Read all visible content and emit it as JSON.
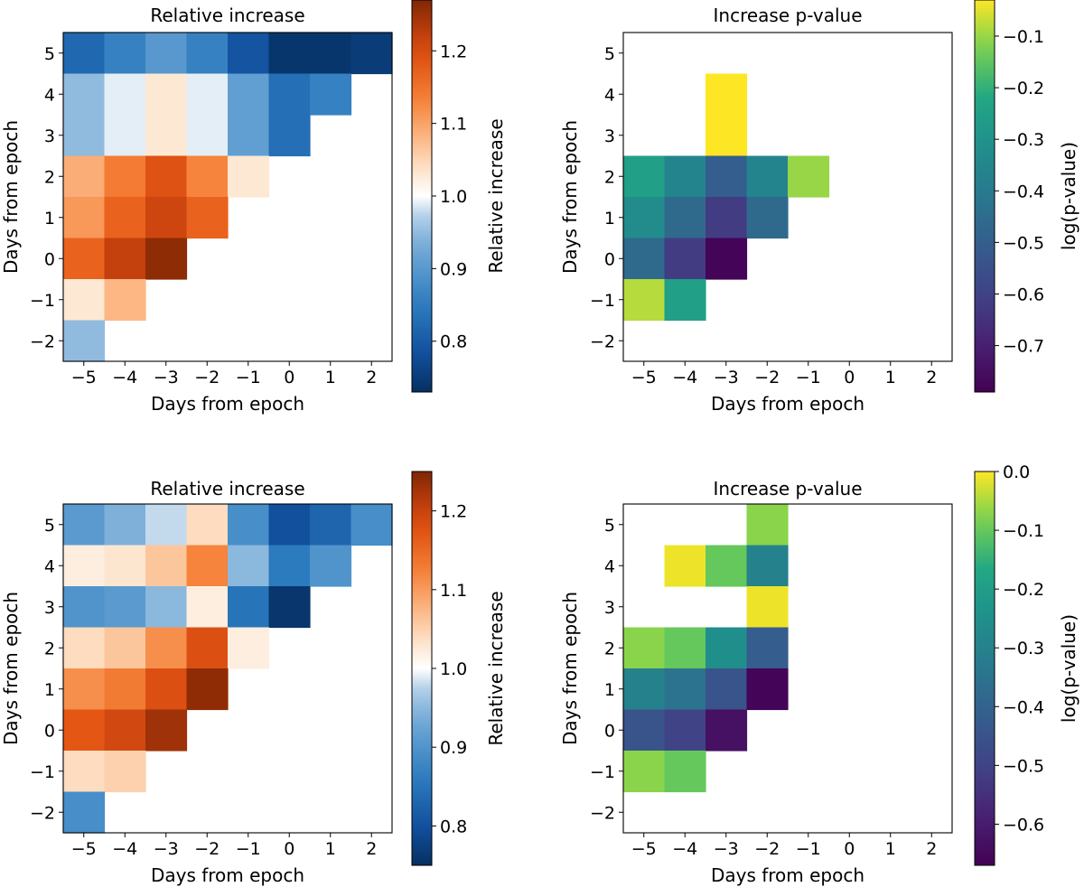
{
  "chart_data": [
    {
      "type": "heatmap",
      "title": "Relative increase",
      "xlabel": "Days from epoch",
      "ylabel": "Days from epoch",
      "x": [
        -5,
        -4,
        -3,
        -2,
        -1,
        0,
        1,
        2
      ],
      "y": [
        5,
        4,
        3,
        2,
        1,
        0,
        -1,
        -2
      ],
      "xtick_labels": [
        "−5",
        "−4",
        "−3",
        "−2",
        "−1",
        "0",
        "1",
        "2"
      ],
      "ytick_labels": [
        "5",
        "4",
        "3",
        "2",
        "1",
        "0",
        "−1",
        "−2"
      ],
      "values": [
        [
          0.82,
          0.86,
          0.9,
          0.86,
          0.79,
          0.74,
          0.74,
          0.75
        ],
        [
          0.95,
          0.99,
          1.03,
          0.99,
          0.91,
          0.83,
          0.86,
          null
        ],
        [
          0.95,
          0.99,
          1.03,
          0.99,
          0.91,
          0.83,
          null,
          null
        ],
        [
          1.09,
          1.14,
          1.19,
          1.13,
          1.03,
          null,
          null,
          null
        ],
        [
          1.11,
          1.17,
          1.21,
          1.17,
          null,
          null,
          null,
          null
        ],
        [
          1.17,
          1.22,
          1.26,
          null,
          null,
          null,
          null,
          null
        ],
        [
          1.03,
          1.08,
          null,
          null,
          null,
          null,
          null,
          null
        ],
        [
          0.95,
          null,
          null,
          null,
          null,
          null,
          null,
          null
        ]
      ],
      "colormap": "diverging-blue-white-orange",
      "clim": [
        0.73,
        1.27
      ],
      "colorbar": {
        "label": "Relative increase",
        "ticks": [
          0.8,
          0.9,
          1.0,
          1.1,
          1.2
        ],
        "tick_labels": [
          "0.8",
          "0.9",
          "1.0",
          "1.1",
          "1.2"
        ]
      }
    },
    {
      "type": "heatmap",
      "title": "Increase p-value",
      "xlabel": "Days from epoch",
      "ylabel": "Days from epoch",
      "x": [
        -5,
        -4,
        -3,
        -2,
        -1,
        0,
        1,
        2
      ],
      "y": [
        5,
        4,
        3,
        2,
        1,
        0,
        -1,
        -2
      ],
      "xtick_labels": [
        "−5",
        "−4",
        "−3",
        "−2",
        "−1",
        "0",
        "1",
        "2"
      ],
      "ytick_labels": [
        "5",
        "4",
        "3",
        "2",
        "1",
        "0",
        "−1",
        "−2"
      ],
      "values": [
        [
          null,
          null,
          null,
          null,
          null,
          null,
          null,
          null
        ],
        [
          null,
          null,
          -0.03,
          null,
          null,
          null,
          null,
          null
        ],
        [
          null,
          null,
          -0.03,
          null,
          null,
          null,
          null,
          null
        ],
        [
          -0.25,
          -0.36,
          -0.5,
          -0.36,
          -0.1,
          null,
          null,
          null
        ],
        [
          -0.33,
          -0.46,
          -0.62,
          -0.46,
          null,
          null,
          null,
          null
        ],
        [
          -0.46,
          -0.62,
          -0.78,
          null,
          null,
          null,
          null,
          null
        ],
        [
          -0.08,
          -0.25,
          null,
          null,
          null,
          null,
          null,
          null
        ],
        [
          null,
          null,
          null,
          null,
          null,
          null,
          null,
          null
        ]
      ],
      "colormap": "viridis",
      "clim": [
        -0.79,
        -0.03
      ],
      "colorbar": {
        "label": "log(p-value)",
        "ticks": [
          -0.7,
          -0.6,
          -0.5,
          -0.4,
          -0.3,
          -0.2,
          -0.1
        ],
        "tick_labels": [
          "−0.7",
          "−0.6",
          "−0.5",
          "−0.4",
          "−0.3",
          "−0.2",
          "−0.1"
        ]
      }
    },
    {
      "type": "heatmap",
      "title": "Relative increase",
      "xlabel": "Days from epoch",
      "ylabel": "Days from epoch",
      "x": [
        -5,
        -4,
        -3,
        -2,
        -1,
        0,
        1,
        2
      ],
      "y": [
        5,
        4,
        3,
        2,
        1,
        0,
        -1,
        -2
      ],
      "xtick_labels": [
        "−5",
        "−4",
        "−3",
        "−2",
        "−1",
        "0",
        "1",
        "2"
      ],
      "ytick_labels": [
        "5",
        "4",
        "3",
        "2",
        "1",
        "0",
        "−1",
        "−2"
      ],
      "values": [
        [
          0.91,
          0.94,
          0.98,
          1.04,
          0.89,
          0.8,
          0.83,
          0.89
        ],
        [
          1.02,
          1.03,
          1.06,
          1.12,
          0.95,
          0.86,
          0.9,
          null
        ],
        [
          0.9,
          0.91,
          0.95,
          1.02,
          0.85,
          0.76,
          null,
          null
        ],
        [
          1.04,
          1.06,
          1.11,
          1.18,
          1.02,
          null,
          null,
          null
        ],
        [
          1.11,
          1.13,
          1.18,
          1.24,
          null,
          null,
          null,
          null
        ],
        [
          1.17,
          1.19,
          1.23,
          null,
          null,
          null,
          null,
          null
        ],
        [
          1.04,
          1.05,
          null,
          null,
          null,
          null,
          null,
          null
        ],
        [
          0.89,
          null,
          null,
          null,
          null,
          null,
          null,
          null
        ]
      ],
      "colormap": "diverging-blue-white-orange",
      "clim": [
        0.75,
        1.25
      ],
      "colorbar": {
        "label": "Relative increase",
        "ticks": [
          0.8,
          0.9,
          1.0,
          1.1,
          1.2
        ],
        "tick_labels": [
          "0.8",
          "0.9",
          "1.0",
          "1.1",
          "1.2"
        ]
      }
    },
    {
      "type": "heatmap",
      "title": "Increase p-value",
      "xlabel": "Days from epoch",
      "ylabel": "Days from epoch",
      "x": [
        -5,
        -4,
        -3,
        -2,
        -1,
        0,
        1,
        2
      ],
      "y": [
        5,
        4,
        3,
        2,
        1,
        0,
        -1,
        -2
      ],
      "xtick_labels": [
        "−5",
        "−4",
        "−3",
        "−2",
        "−1",
        "0",
        "1",
        "2"
      ],
      "ytick_labels": [
        "5",
        "4",
        "3",
        "2",
        "1",
        "0",
        "−1",
        "−2"
      ],
      "values": [
        [
          null,
          null,
          null,
          -0.07,
          null,
          null,
          null,
          null
        ],
        [
          null,
          -0.01,
          -0.1,
          -0.3,
          null,
          null,
          null,
          null
        ],
        [
          null,
          null,
          null,
          -0.01,
          null,
          null,
          null,
          null
        ],
        [
          -0.07,
          -0.1,
          -0.25,
          -0.42,
          null,
          null,
          null,
          null
        ],
        [
          -0.3,
          -0.35,
          -0.45,
          -0.66,
          null,
          null,
          null,
          null
        ],
        [
          -0.45,
          -0.5,
          -0.63,
          null,
          null,
          null,
          null,
          null
        ],
        [
          -0.07,
          -0.1,
          null,
          null,
          null,
          null,
          null,
          null
        ],
        [
          null,
          null,
          null,
          null,
          null,
          null,
          null,
          null
        ]
      ],
      "colormap": "viridis",
      "clim": [
        -0.67,
        0.0
      ],
      "colorbar": {
        "label": "log(p-value)",
        "ticks": [
          -0.6,
          -0.5,
          -0.4,
          -0.3,
          -0.2,
          -0.1,
          0.0
        ],
        "tick_labels": [
          "−0.6",
          "−0.5",
          "−0.4",
          "−0.3",
          "−0.2",
          "−0.1",
          "0.0"
        ]
      }
    }
  ]
}
